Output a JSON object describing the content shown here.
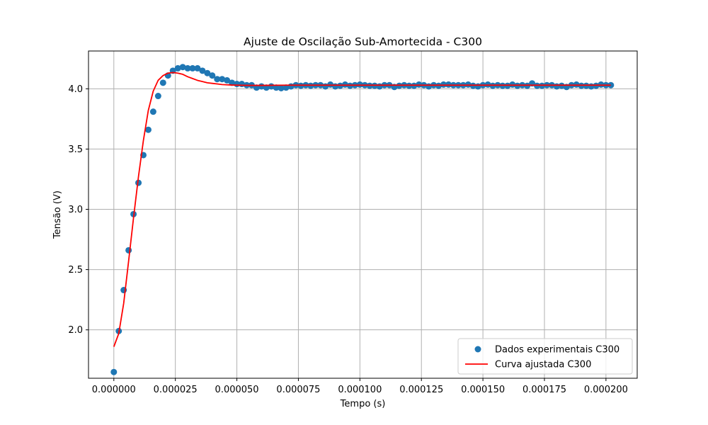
{
  "chart_data": {
    "type": "scatter",
    "title": "Ajuste de Oscilação Sub-Amortecida - C300",
    "xlabel": "Tempo (s)",
    "ylabel": "Tensão (V)",
    "xlim": [
      -1.03e-05,
      0.0002127
    ],
    "ylim": [
      1.5985,
      4.3135
    ],
    "xticks": [
      0.0,
      2.5e-05,
      5e-05,
      7.5e-05,
      0.0001,
      0.000125,
      0.00015,
      0.000175,
      0.0002
    ],
    "xtick_labels": [
      "0.000000",
      "0.000025",
      "0.000050",
      "0.000075",
      "0.000100",
      "0.000125",
      "0.000150",
      "0.000175",
      "0.000200"
    ],
    "yticks": [
      2.0,
      2.5,
      3.0,
      3.5,
      4.0
    ],
    "ytick_labels": [
      "2.0",
      "2.5",
      "3.0",
      "3.5",
      "4.0"
    ],
    "grid": true,
    "legend_position": "bottom-right",
    "series": [
      {
        "name": "Dados experimentais C300",
        "kind": "scatter",
        "color": "#1f77b4",
        "x_start": 0.0,
        "x_step": 2e-06,
        "values": [
          1.65,
          1.99,
          2.33,
          2.66,
          2.96,
          3.22,
          3.45,
          3.66,
          3.81,
          3.94,
          4.05,
          4.11,
          4.15,
          4.17,
          4.18,
          4.17,
          4.17,
          4.17,
          4.15,
          4.13,
          4.11,
          4.08,
          4.08,
          4.07,
          4.05,
          4.04,
          4.04,
          4.03,
          4.03,
          4.01,
          4.02,
          4.01,
          4.02,
          4.01,
          4.005,
          4.01,
          4.02,
          4.03,
          4.025,
          4.03,
          4.025,
          4.03,
          4.03,
          4.02,
          4.035,
          4.02,
          4.025,
          4.035,
          4.025,
          4.03,
          4.035,
          4.03,
          4.025,
          4.025,
          4.02,
          4.03,
          4.03,
          4.015,
          4.025,
          4.03,
          4.025,
          4.025,
          4.035,
          4.03,
          4.02,
          4.03,
          4.025,
          4.035,
          4.035,
          4.03,
          4.03,
          4.03,
          4.035,
          4.025,
          4.02,
          4.03,
          4.035,
          4.025,
          4.03,
          4.025,
          4.025,
          4.035,
          4.025,
          4.03,
          4.025,
          4.045,
          4.025,
          4.025,
          4.03,
          4.03,
          4.02,
          4.025,
          4.015,
          4.03,
          4.035,
          4.025,
          4.025,
          4.02,
          4.025,
          4.035,
          4.03,
          4.03
        ]
      },
      {
        "name": "Curva ajustada C300",
        "kind": "line",
        "color": "#ff0000",
        "x": [
          0.0,
          2e-06,
          4e-06,
          6e-06,
          8e-06,
          1e-05,
          1.2e-05,
          1.4e-05,
          1.6e-05,
          1.8e-05,
          2e-05,
          2.2e-05,
          2.4e-05,
          2.6e-05,
          2.8e-05,
          3e-05,
          3.2e-05,
          3.4e-05,
          3.6e-05,
          3.8e-05,
          4e-05,
          4.2e-05,
          4.4e-05,
          4.6e-05,
          4.8e-05,
          5e-05,
          5.5e-05,
          6e-05,
          6.5e-05,
          7e-05,
          7.5e-05,
          8e-05,
          9e-05,
          0.0001,
          0.00012,
          0.00014,
          0.00016,
          0.00018,
          0.0002,
          0.000202
        ],
        "values": [
          1.86,
          1.97,
          2.22,
          2.57,
          2.93,
          3.27,
          3.57,
          3.82,
          3.98,
          4.07,
          4.11,
          4.13,
          4.135,
          4.13,
          4.12,
          4.1,
          4.085,
          4.07,
          4.06,
          4.05,
          4.045,
          4.04,
          4.035,
          4.033,
          4.031,
          4.03,
          4.028,
          4.028,
          4.029,
          4.03,
          4.03,
          4.03,
          4.03,
          4.03,
          4.03,
          4.03,
          4.03,
          4.03,
          4.03,
          4.03
        ]
      }
    ]
  }
}
